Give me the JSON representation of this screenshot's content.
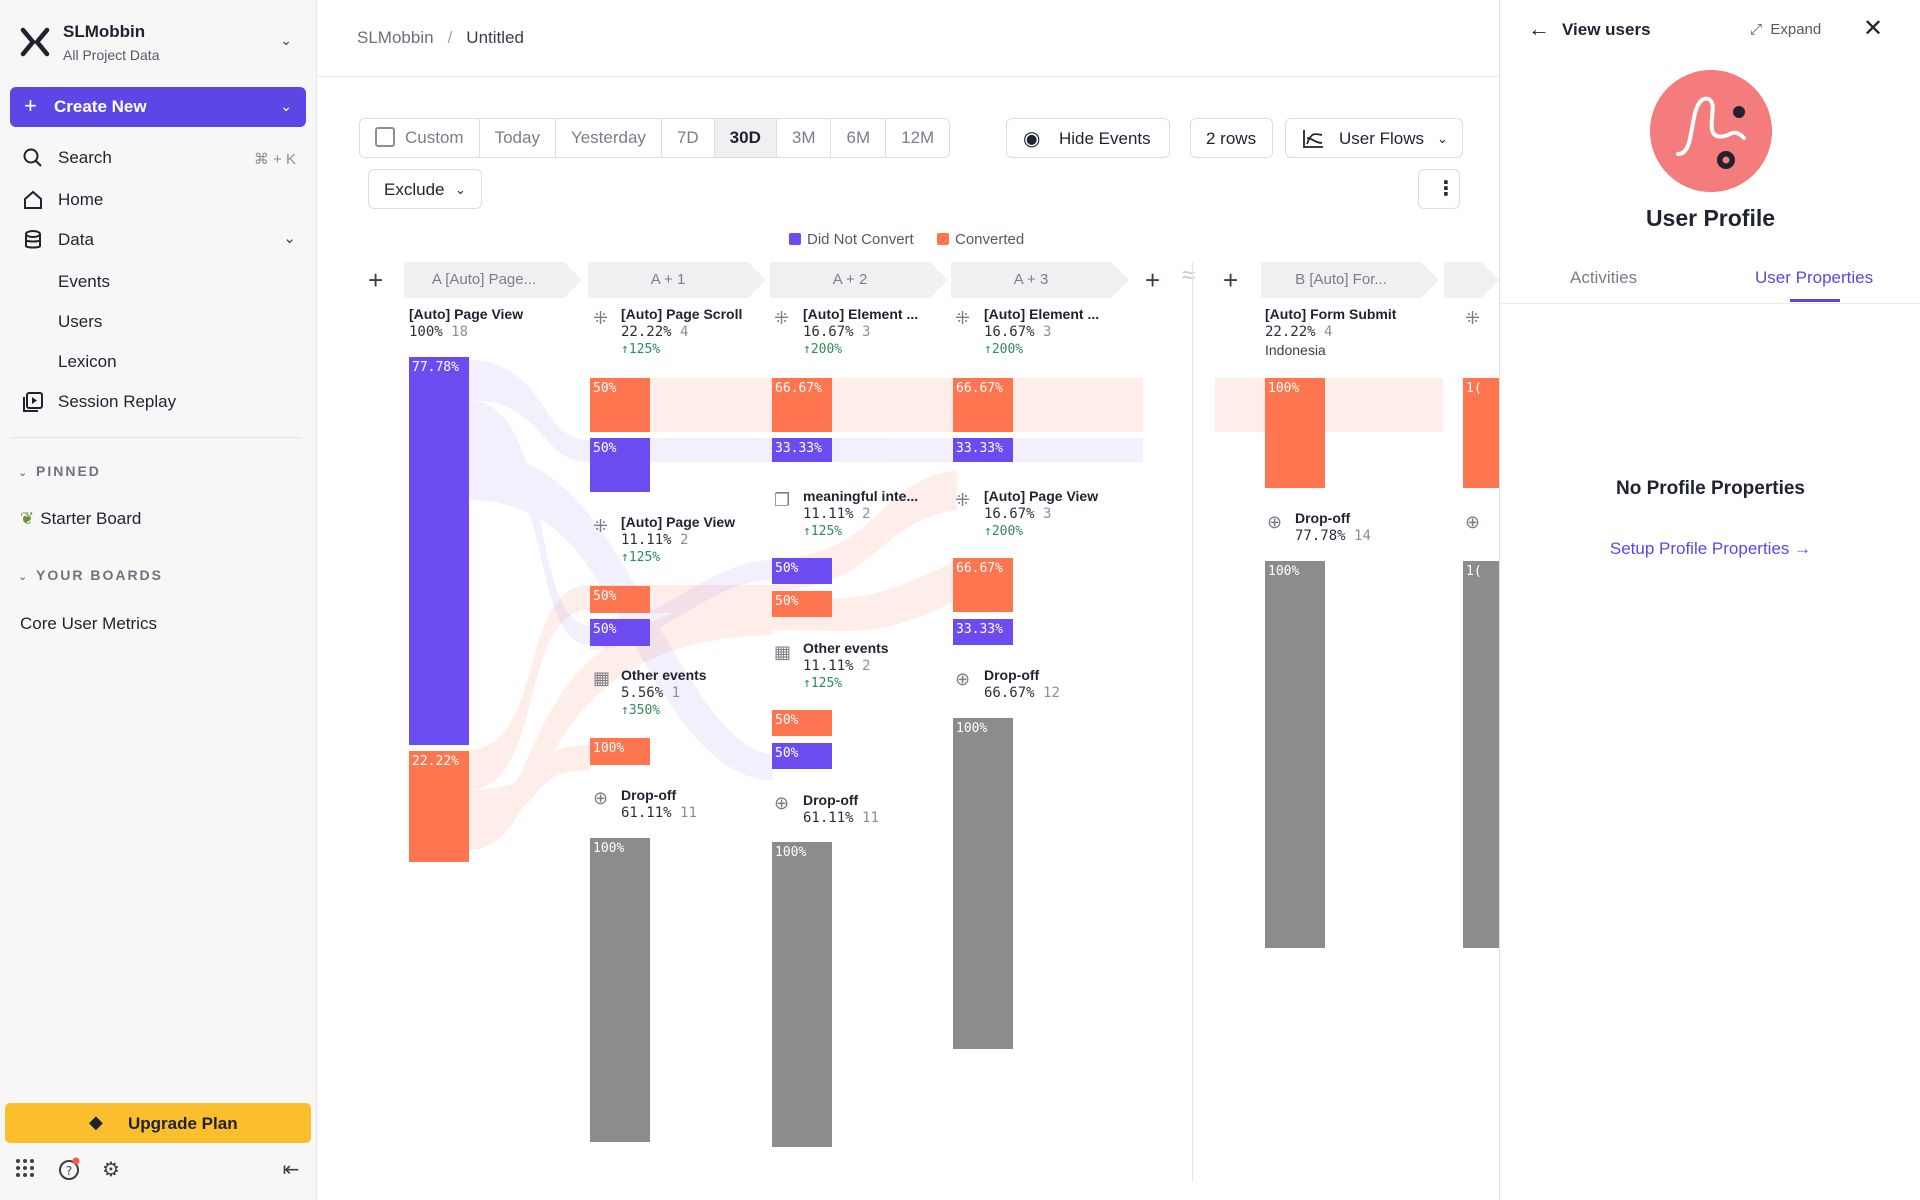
{
  "workspace": {
    "name": "SLMobbin",
    "subtitle": "All Project Data"
  },
  "create_new": {
    "label": "Create New"
  },
  "nav": {
    "search": {
      "label": "Search",
      "shortcut": "⌘ + K"
    },
    "home": {
      "label": "Home"
    },
    "data": {
      "label": "Data",
      "children": [
        "Events",
        "Users",
        "Lexicon"
      ]
    },
    "session_replay": {
      "label": "Session Replay"
    }
  },
  "pinned": {
    "header": "PINNED",
    "items": [
      "Starter Board"
    ]
  },
  "your_boards": {
    "header": "YOUR BOARDS",
    "items": [
      "Core User Metrics"
    ]
  },
  "upgrade": {
    "label": "Upgrade Plan"
  },
  "breadcrumb": {
    "project": "SLMobbin",
    "separator": "/",
    "current": "Untitled"
  },
  "toolbar": {
    "date_ranges": [
      "Custom",
      "Today",
      "Yesterday",
      "7D",
      "30D",
      "3M",
      "6M",
      "12M"
    ],
    "active_range": "30D",
    "hide_events": "Hide Events",
    "rows": "2 rows",
    "view": "User Flows",
    "exclude": "Exclude"
  },
  "legend": [
    {
      "label": "Did Not Convert",
      "color": "#6c4cf0"
    },
    {
      "label": "Converted",
      "color": "#ff7550"
    }
  ],
  "columns": [
    "A  [Auto] Page...",
    "A + 1",
    "A + 2",
    "A + 3",
    "B  [Auto] For..."
  ],
  "flow": {
    "a0": {
      "name": "[Auto] Page View",
      "pct": "100%",
      "count": "18",
      "bar_top": "77.78%",
      "bar_bottom": "22.22%"
    },
    "a1": [
      {
        "name": "[Auto] Page Scroll",
        "pct": "22.22%",
        "count": "4",
        "lift": "↑125%",
        "bars": [
          "50%",
          "50%"
        ]
      },
      {
        "name": "[Auto] Page View",
        "pct": "11.11%",
        "count": "2",
        "lift": "↑125%",
        "bars": [
          "50%",
          "50%"
        ]
      },
      {
        "name": "Other events",
        "pct": "5.56%",
        "count": "1",
        "lift": "↑350%",
        "bars": [
          "100%"
        ]
      },
      {
        "name": "Drop-off",
        "pct": "61.11%",
        "count": "11",
        "bars": [
          "100%"
        ]
      }
    ],
    "a2": [
      {
        "name": "[Auto] Element ...",
        "pct": "16.67%",
        "count": "3",
        "lift": "↑200%",
        "bars": [
          "66.67%",
          "33.33%"
        ]
      },
      {
        "name": "meaningful inte...",
        "pct": "11.11%",
        "count": "2",
        "lift": "↑125%",
        "bars": [
          "50%",
          "50%"
        ]
      },
      {
        "name": "Other events",
        "pct": "11.11%",
        "count": "2",
        "lift": "↑125%",
        "bars": [
          "50%",
          "50%"
        ]
      },
      {
        "name": "Drop-off",
        "pct": "61.11%",
        "count": "11",
        "bars": [
          "100%"
        ]
      }
    ],
    "a3": [
      {
        "name": "[Auto] Element ...",
        "pct": "16.67%",
        "count": "3",
        "lift": "↑200%",
        "bars": [
          "66.67%",
          "33.33%"
        ]
      },
      {
        "name": "[Auto] Page View",
        "pct": "16.67%",
        "count": "3",
        "lift": "↑200%",
        "bars": [
          "66.67%",
          "33.33%"
        ]
      },
      {
        "name": "Drop-off",
        "pct": "66.67%",
        "count": "12",
        "bars": [
          "100%"
        ]
      }
    ],
    "b0": [
      {
        "name": "[Auto] Form Submit",
        "pct": "22.22%",
        "count": "4",
        "meta": "Indonesia",
        "bars": [
          "100%"
        ]
      },
      {
        "name": "Drop-off",
        "pct": "77.78%",
        "count": "14",
        "bars": [
          "100%"
        ]
      }
    ],
    "b1_partial": "1("
  },
  "panel": {
    "title": "View users",
    "expand": "Expand",
    "name": "User Profile",
    "tabs": [
      "Activities",
      "User Properties"
    ],
    "active_tab": "User Properties",
    "empty_title": "No Profile Properties",
    "empty_link": "Setup Profile Properties →"
  }
}
